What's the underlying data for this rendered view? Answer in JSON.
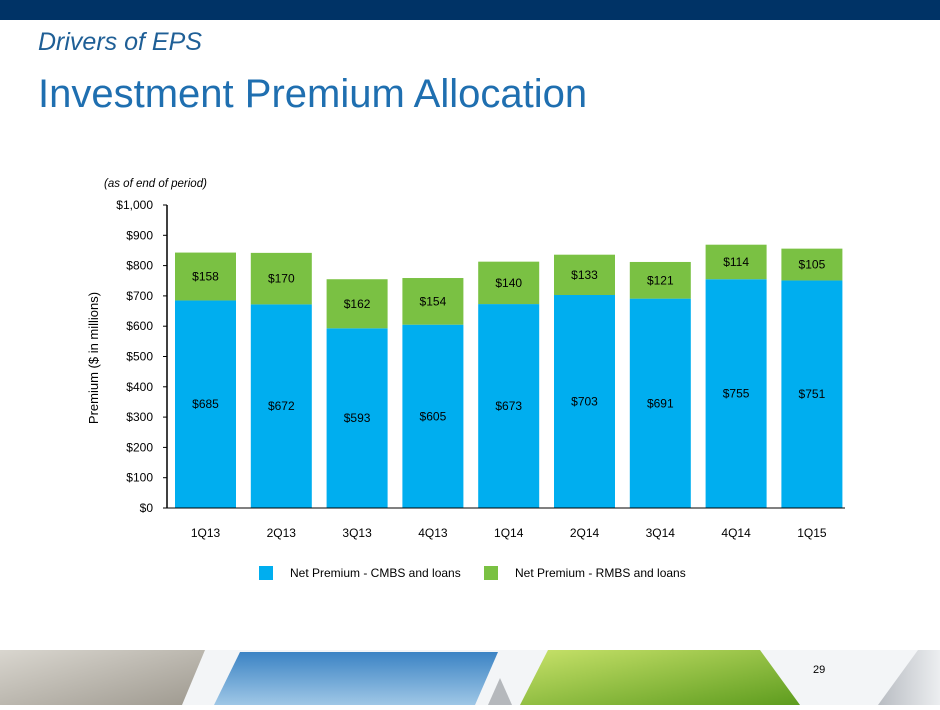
{
  "header": {
    "subtitle": "Drivers of EPS",
    "title": "Investment Premium Allocation",
    "note": "(as of end of period)"
  },
  "page_number": "29",
  "colors": {
    "topbar": "#003366",
    "cmbs": "#00aeef",
    "rmbs": "#7ac143"
  },
  "chart_data": {
    "type": "bar",
    "stacked": true,
    "categories": [
      "1Q13",
      "2Q13",
      "3Q13",
      "4Q13",
      "1Q14",
      "2Q14",
      "3Q14",
      "4Q14",
      "1Q15"
    ],
    "series": [
      {
        "name": "Net Premium - CMBS and loans",
        "values": [
          685,
          672,
          593,
          605,
          673,
          703,
          691,
          755,
          751
        ],
        "labels": [
          "$685",
          "$672",
          "$593",
          "$605",
          "$673",
          "$703",
          "$691",
          "$755",
          "$751"
        ]
      },
      {
        "name": "Net Premium - RMBS and loans",
        "values": [
          158,
          170,
          162,
          154,
          140,
          133,
          121,
          114,
          105
        ],
        "labels": [
          "$158",
          "$170",
          "$162",
          "$154",
          "$140",
          "$133",
          "$121",
          "$114",
          "$105"
        ]
      }
    ],
    "ylabel": "Premium ($ in millions)",
    "ylim": [
      0,
      1000
    ],
    "yticks": [
      0,
      100,
      200,
      300,
      400,
      500,
      600,
      700,
      800,
      900,
      1000
    ],
    "ytick_labels": [
      "$0",
      "$100",
      "$200",
      "$300",
      "$400",
      "$500",
      "$600",
      "$700",
      "$800",
      "$900",
      "$1,000"
    ],
    "legend_position": "bottom"
  }
}
